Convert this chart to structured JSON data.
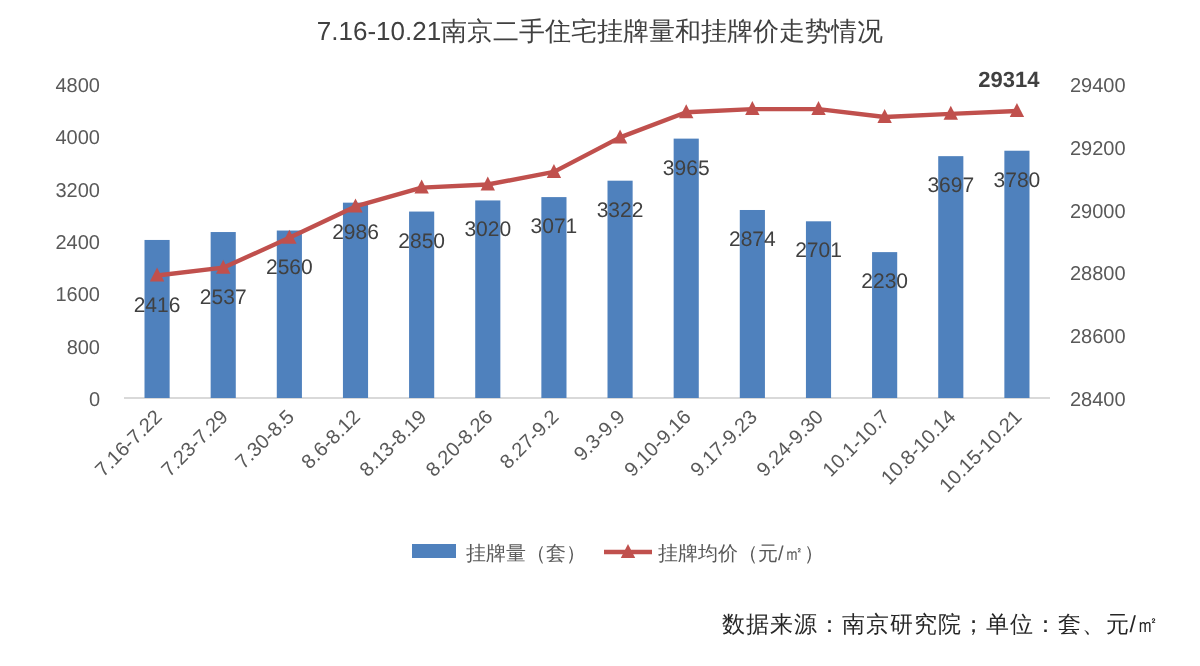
{
  "chart_data": {
    "type": "bar",
    "title": "7.16-10.21南京二手住宅挂牌量和挂牌价走势情况",
    "categories": [
      "7.16-7.22",
      "7.23-7.29",
      "7.30-8.5",
      "8.6-8.12",
      "8.13-8.19",
      "8.20-8.26",
      "8.27-9.2",
      "9.3-9.9",
      "9.10-9.16",
      "9.17-9.23",
      "9.24-9.30",
      "10.1-10.7",
      "10.8-10.14",
      "10.15-10.21"
    ],
    "series": [
      {
        "name": "挂牌量（套）",
        "type": "bar",
        "color": "#4f81bd",
        "values": [
          2416,
          2537,
          2560,
          2986,
          2850,
          3020,
          3071,
          3322,
          3965,
          2874,
          2701,
          2230,
          3697,
          3780
        ],
        "value_labels": [
          "2416",
          "2537",
          "2560",
          "2986",
          "2850",
          "3020",
          "3071",
          "3322",
          "3965",
          "2874",
          "2701",
          "2230",
          "3697",
          "3780"
        ]
      },
      {
        "name": "挂牌均价（元/㎡）",
        "type": "line",
        "axis": "y2",
        "color": "#c0504d",
        "marker": "triangle",
        "values": [
          28790,
          28815,
          28910,
          29010,
          29070,
          29080,
          29120,
          29230,
          29310,
          29320,
          29320,
          29295,
          29305,
          29314
        ],
        "value_labels": [
          null,
          null,
          null,
          null,
          null,
          null,
          null,
          null,
          null,
          null,
          null,
          null,
          null,
          "29314"
        ]
      }
    ],
    "ylim": [
      0,
      4800
    ],
    "yticks": [
      0,
      800,
      1600,
      2400,
      3200,
      4000,
      4800
    ],
    "y2lim": [
      28400,
      29400
    ],
    "y2ticks": [
      28400,
      28600,
      28800,
      29000,
      29200,
      29400
    ],
    "legend": "bottom",
    "grid": false,
    "annotations": [
      "数据来源：南京研究院；单位：套、元/㎡"
    ]
  }
}
